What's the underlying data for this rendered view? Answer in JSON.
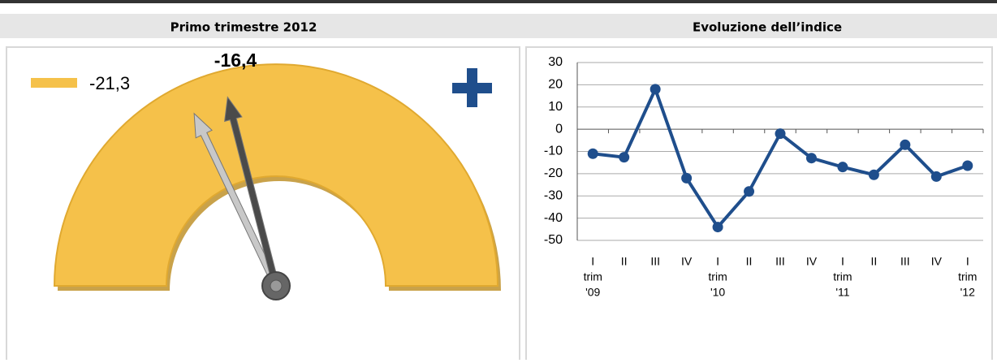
{
  "chart_data": [
    {
      "type": "gauge",
      "title": "Primo trimestre 2012",
      "values": [
        -16.4,
        -21.3
      ],
      "value_labels": [
        "-16,4",
        "-21,3"
      ],
      "colors": [
        "#4a4a4a",
        "#c8c8c8"
      ],
      "legend_color": "#f5c14a"
    },
    {
      "type": "line",
      "title": "Evoluzione dell’indice",
      "categories": [
        [
          "I",
          "trim",
          "'09"
        ],
        [
          "II"
        ],
        [
          "III"
        ],
        [
          "IV"
        ],
        [
          "I",
          "trim",
          "'10"
        ],
        [
          "II"
        ],
        [
          "III"
        ],
        [
          "IV"
        ],
        [
          "I",
          "trim",
          "'11"
        ],
        [
          "II"
        ],
        [
          "III"
        ],
        [
          "IV"
        ],
        [
          "I",
          "trim",
          "'12"
        ]
      ],
      "series": [
        {
          "color": "#1f4e8c",
          "values": [
            -11,
            -12.6,
            18,
            -22,
            -44,
            -28,
            -2,
            -13,
            -17,
            -20.5,
            -7,
            -21.3,
            -16.4
          ]
        }
      ],
      "ylim": [
        -50,
        30
      ],
      "yticks": [
        -50,
        -40,
        -30,
        -20,
        -10,
        0,
        10,
        20,
        30
      ],
      "grid": true
    }
  ]
}
